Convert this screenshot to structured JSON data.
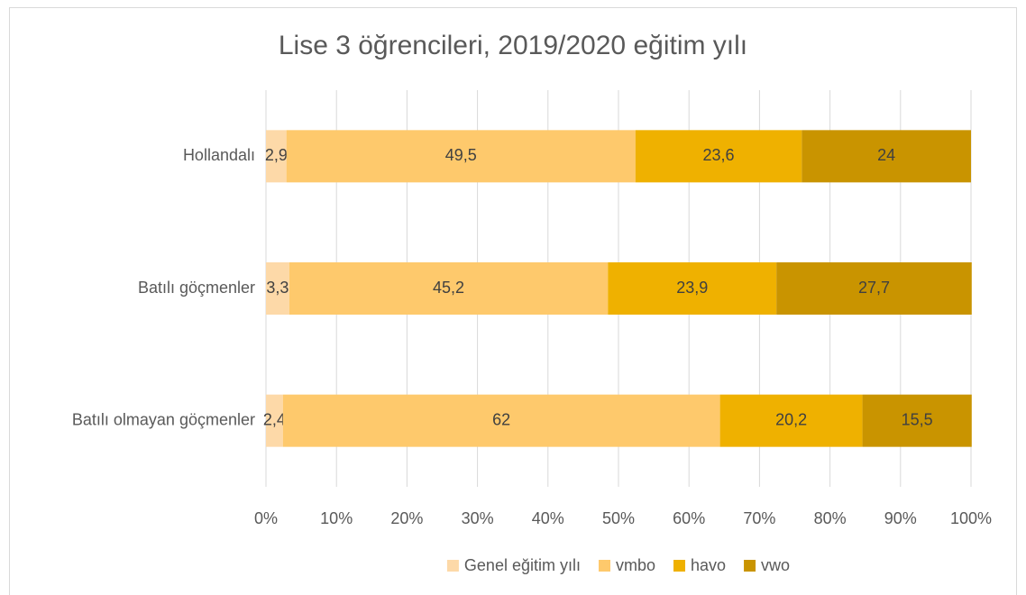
{
  "chart_data": {
    "type": "stacked-bar-horizontal",
    "title": "Lise 3 öğrencileri, 2019/2020 eğitim yılı",
    "categories": [
      "Hollandalı",
      "Batılı göçmenler",
      "Batılı olmayan göçmenler"
    ],
    "series": [
      {
        "name": "Genel eğitim yılı",
        "color": "#fdd9a8",
        "values": [
          2.9,
          3.3,
          2.4
        ],
        "value_labels": [
          "2,9",
          "3,3",
          "2,4"
        ]
      },
      {
        "name": "vmbo",
        "color": "#fec96c",
        "values": [
          49.5,
          45.2,
          62
        ],
        "value_labels": [
          "49,5",
          "45,2",
          "62"
        ]
      },
      {
        "name": "havo",
        "color": "#efb100",
        "values": [
          23.6,
          23.9,
          20.2
        ],
        "value_labels": [
          "23,6",
          "23,9",
          "20,2"
        ]
      },
      {
        "name": "vwo",
        "color": "#c99400",
        "values": [
          24,
          27.7,
          15.5
        ],
        "value_labels": [
          "24",
          "27,7",
          "15,5"
        ]
      }
    ],
    "xlim": [
      0,
      100
    ],
    "xticks": [
      {
        "value": 0,
        "label": "0%"
      },
      {
        "value": 10,
        "label": "10%"
      },
      {
        "value": 20,
        "label": "20%"
      },
      {
        "value": 30,
        "label": "30%"
      },
      {
        "value": 40,
        "label": "40%"
      },
      {
        "value": 50,
        "label": "50%"
      },
      {
        "value": 60,
        "label": "60%"
      },
      {
        "value": 70,
        "label": "70%"
      },
      {
        "value": 80,
        "label": "80%"
      },
      {
        "value": 90,
        "label": "90%"
      },
      {
        "value": 100,
        "label": "100%"
      }
    ],
    "grid": true,
    "legend": "bottom"
  }
}
